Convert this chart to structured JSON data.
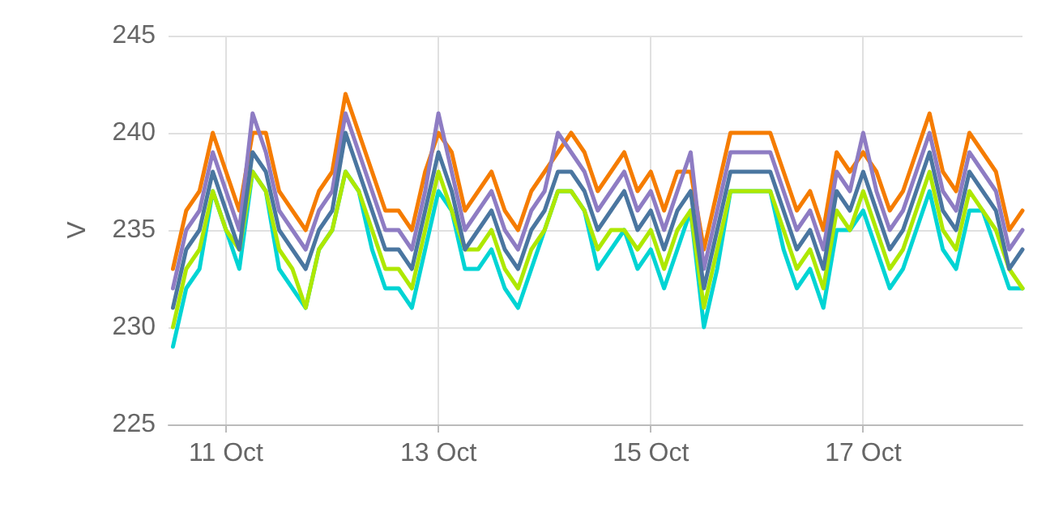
{
  "chart_data": {
    "type": "line",
    "ylabel": "V",
    "grid": true,
    "marker": "none",
    "line_style": "solid",
    "x": [
      "--10-10T12:00",
      "--10-10T15:00",
      "--10-10T18:00",
      "--10-10T21:00",
      "--10-11T00:00",
      "--10-11T03:00",
      "--10-11T06:00",
      "--10-11T09:00",
      "--10-11T12:00",
      "--10-11T15:00",
      "--10-11T18:00",
      "--10-11T21:00",
      "--10-12T00:00",
      "--10-12T03:00",
      "--10-12T06:00",
      "--10-12T09:00",
      "--10-12T12:00",
      "--10-12T15:00",
      "--10-12T18:00",
      "--10-12T21:00",
      "--10-13T00:00",
      "--10-13T03:00",
      "--10-13T06:00",
      "--10-13T09:00",
      "--10-13T12:00",
      "--10-13T15:00",
      "--10-13T18:00",
      "--10-13T21:00",
      "--10-14T00:00",
      "--10-14T03:00",
      "--10-14T06:00",
      "--10-14T09:00",
      "--10-14T12:00",
      "--10-14T15:00",
      "--10-14T18:00",
      "--10-14T21:00",
      "--10-15T00:00",
      "--10-15T03:00",
      "--10-15T06:00",
      "--10-15T09:00",
      "--10-15T12:00",
      "--10-15T15:00",
      "--10-15T18:00",
      "--10-15T21:00",
      "--10-16T00:00",
      "--10-16T03:00",
      "--10-16T06:00",
      "--10-16T09:00",
      "--10-16T12:00",
      "--10-16T15:00",
      "--10-16T18:00",
      "--10-16T21:00",
      "--10-17T00:00",
      "--10-17T03:00",
      "--10-17T06:00",
      "--10-17T09:00",
      "--10-17T12:00",
      "--10-17T15:00",
      "--10-17T18:00",
      "--10-17T21:00",
      "--10-18T00:00",
      "--10-18T03:00",
      "--10-18T06:00",
      "--10-18T09:00",
      "--10-18T12:00"
    ],
    "xlim": [
      "--10-10T11:00",
      "--10-18T12:00"
    ],
    "xticks": [
      {
        "value": "--10-11",
        "label": "11 Oct"
      },
      {
        "value": "--10-13",
        "label": "13 Oct"
      },
      {
        "value": "--10-15",
        "label": "15 Oct"
      },
      {
        "value": "--10-17",
        "label": "17 Oct"
      }
    ],
    "ylim": [
      225,
      245
    ],
    "yticks": [
      225,
      230,
      235,
      240,
      245
    ],
    "series": [
      {
        "color": "#00d4d4",
        "values": [
          229,
          232,
          233,
          237,
          235,
          233,
          238,
          237,
          233,
          232,
          231,
          234,
          235,
          238,
          237,
          234,
          232,
          232,
          231,
          234,
          237,
          236,
          233,
          233,
          234,
          232,
          231,
          233,
          235,
          237,
          237,
          236,
          233,
          234,
          235,
          233,
          234,
          232,
          234,
          236,
          230,
          233,
          237,
          237,
          237,
          237,
          234,
          232,
          233,
          231,
          235,
          235,
          236,
          234,
          232,
          233,
          235,
          237,
          234,
          233,
          236,
          236,
          234,
          232,
          232
        ]
      },
      {
        "color": "#aee800",
        "values": [
          230,
          233,
          234,
          237,
          235,
          234,
          238,
          237,
          234,
          233,
          231,
          234,
          235,
          238,
          237,
          235,
          233,
          233,
          232,
          235,
          238,
          236,
          234,
          234,
          235,
          233,
          232,
          234,
          235,
          237,
          237,
          236,
          234,
          235,
          235,
          234,
          235,
          233,
          235,
          236,
          231,
          234,
          237,
          237,
          237,
          237,
          235,
          233,
          234,
          232,
          236,
          235,
          237,
          235,
          233,
          234,
          236,
          238,
          235,
          234,
          237,
          236,
          235,
          233,
          232
        ]
      },
      {
        "color": "#f57c00",
        "values": [
          233,
          236,
          237,
          240,
          238,
          236,
          240,
          240,
          237,
          236,
          235,
          237,
          238,
          242,
          240,
          238,
          236,
          236,
          235,
          238,
          240,
          239,
          236,
          237,
          238,
          236,
          235,
          237,
          238,
          239,
          240,
          239,
          237,
          238,
          239,
          237,
          238,
          236,
          238,
          238,
          234,
          237,
          240,
          240,
          240,
          240,
          238,
          236,
          237,
          235,
          239,
          238,
          239,
          238,
          236,
          237,
          239,
          241,
          238,
          237,
          240,
          239,
          238,
          235,
          236
        ]
      },
      {
        "color": "#8e7cc3",
        "values": [
          232,
          235,
          236,
          239,
          237,
          235,
          241,
          239,
          236,
          235,
          234,
          236,
          237,
          241,
          239,
          237,
          235,
          235,
          234,
          237,
          241,
          238,
          235,
          236,
          237,
          235,
          234,
          236,
          237,
          240,
          239,
          238,
          236,
          237,
          238,
          236,
          237,
          235,
          237,
          239,
          233,
          236,
          239,
          239,
          239,
          239,
          237,
          235,
          236,
          234,
          238,
          237,
          240,
          237,
          235,
          236,
          238,
          240,
          237,
          236,
          239,
          238,
          237,
          234,
          235
        ]
      },
      {
        "color": "#4a76a0",
        "values": [
          231,
          234,
          235,
          238,
          236,
          234,
          239,
          238,
          235,
          234,
          233,
          235,
          236,
          240,
          238,
          236,
          234,
          234,
          233,
          236,
          239,
          237,
          234,
          235,
          236,
          234,
          233,
          235,
          236,
          238,
          238,
          237,
          235,
          236,
          237,
          235,
          236,
          234,
          236,
          237,
          232,
          235,
          238,
          238,
          238,
          238,
          236,
          234,
          235,
          233,
          237,
          236,
          238,
          236,
          234,
          235,
          237,
          239,
          236,
          235,
          238,
          237,
          236,
          233,
          234
        ]
      }
    ]
  }
}
